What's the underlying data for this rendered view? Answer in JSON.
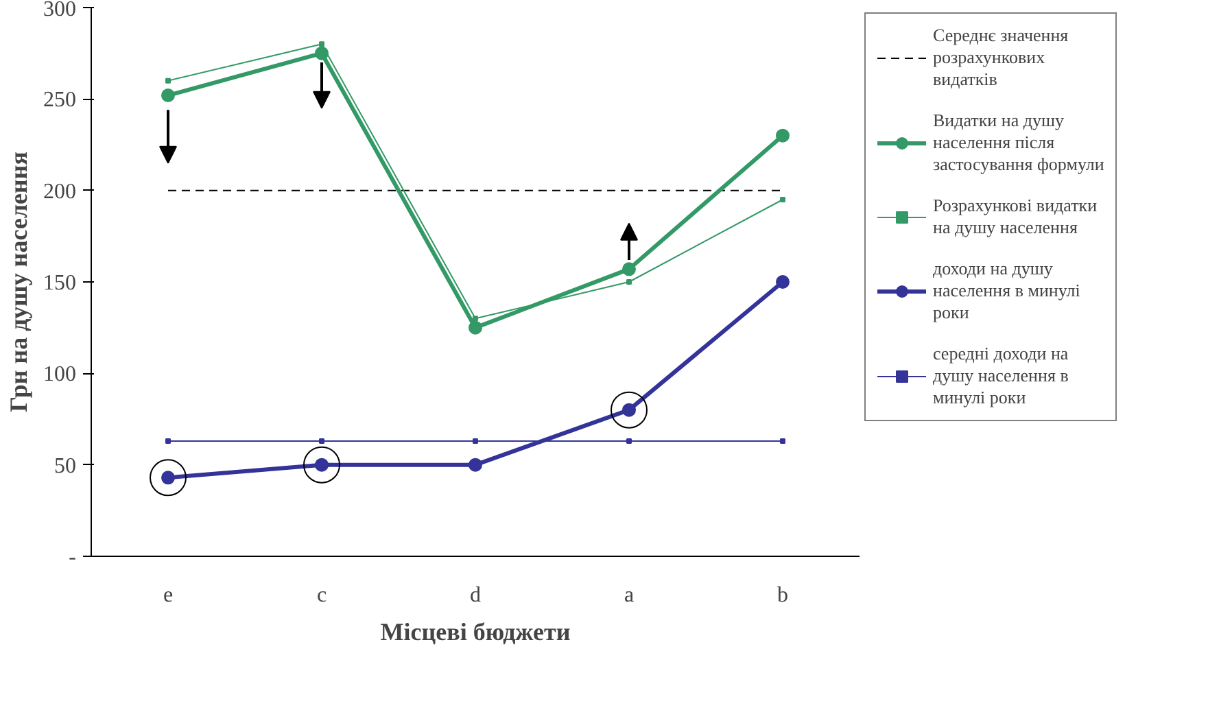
{
  "chart_data": {
    "type": "line",
    "xlabel": "Місцеві бюджети",
    "ylabel": "Грн на душу населення",
    "categories": [
      "e",
      "c",
      "d",
      "a",
      "b"
    ],
    "ylim": [
      0,
      300
    ],
    "yticks": [
      {
        "value": 0,
        "label": "-"
      },
      50,
      100,
      150,
      200,
      250,
      300
    ],
    "grid": false,
    "legend": "right",
    "series": [
      {
        "name": "Середнє значення розрахункових видатків",
        "color": "#000000",
        "values": [
          200,
          200,
          200,
          200,
          200
        ],
        "line_style": "dashed",
        "marker": "none"
      },
      {
        "name": "Видатки на душу населення після застосування формули",
        "color": "#339966",
        "values": [
          252,
          275,
          125,
          157,
          230
        ],
        "line_style": "solid",
        "marker": "circle"
      },
      {
        "name": "Розрахункові видатки на душу населення",
        "color": "#339966",
        "values": [
          260,
          280,
          130,
          150,
          195
        ],
        "line_style": "solid",
        "marker": "square"
      },
      {
        "name": "доходи на душу населення в минулі роки",
        "color": "#333399",
        "values": [
          43,
          50,
          50,
          80,
          150
        ],
        "line_style": "solid",
        "marker": "circle"
      },
      {
        "name": "середні доходи на душу населення в минулі роки",
        "color": "#333399",
        "values": [
          63,
          63,
          63,
          63,
          63
        ],
        "line_style": "solid",
        "marker": "square"
      }
    ]
  }
}
